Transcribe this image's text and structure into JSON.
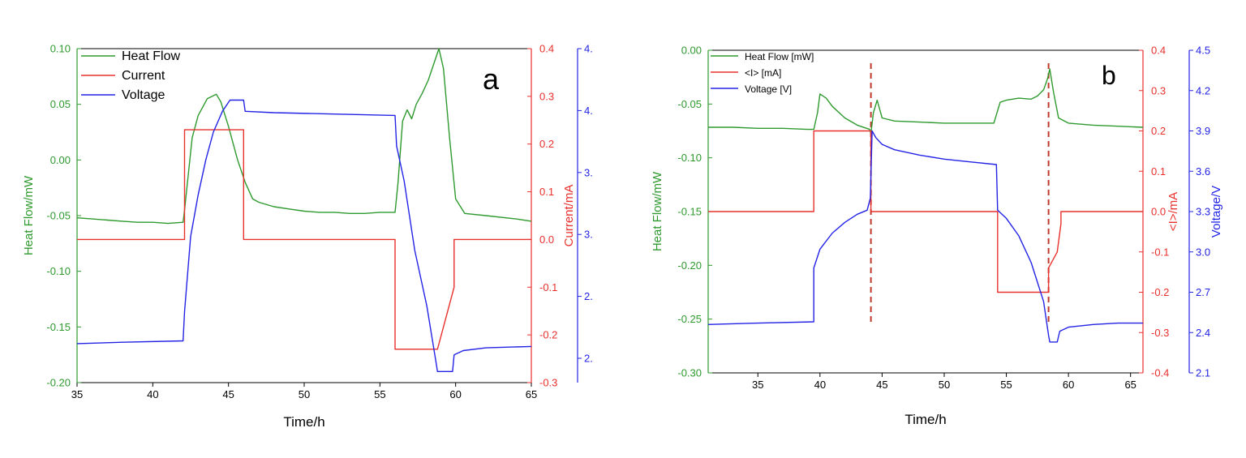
{
  "colors": {
    "heat": "#2e9a2e",
    "current": "#e8302c",
    "voltage": "#2323e6",
    "axis": "#000000",
    "marker": "#c0392b"
  },
  "chart_data": [
    {
      "panel_label": "a",
      "type": "line",
      "xlabel": "Time/h",
      "xlim": [
        35,
        65
      ],
      "xticks": [
        35,
        40,
        45,
        50,
        55,
        60,
        65
      ],
      "left_axis": {
        "label": "Heat Flow/mW",
        "lim": [
          -0.2,
          0.1
        ],
        "ticks": [
          "0.10",
          "0.05",
          "0.00",
          "-0.05",
          "-0.10",
          "-0.15",
          "-0.20"
        ]
      },
      "right_axis_1": {
        "label": "Current/mA",
        "lim": [
          -0.3,
          0.4
        ],
        "ticks": [
          "0.4",
          "0.3",
          "0.2",
          "0.1",
          "0.0",
          "-0.1",
          "-0.2",
          "-0.3"
        ]
      },
      "right_axis_2": {
        "label": "",
        "lim": [
          2.25,
          4.65
        ],
        "ticks": [
          "4.",
          "4.",
          "3.",
          "3.",
          "2.",
          "2."
        ]
      },
      "legend": {
        "placement": "top-left",
        "entries": [
          "Heat Flow",
          "Current",
          "Voltage"
        ]
      },
      "series": [
        {
          "name": "Heat Flow",
          "axis": "left",
          "x": [
            35,
            36,
            37,
            38,
            39,
            40,
            41,
            42,
            42.1,
            42.6,
            43,
            43.6,
            44.2,
            44.5,
            45,
            45.6,
            46.1,
            46.6,
            47,
            48,
            49,
            50,
            51,
            52,
            53,
            54,
            55,
            56,
            56.2,
            56.5,
            56.8,
            57.1,
            57.4,
            57.8,
            58.2,
            58.6,
            58.9,
            59.2,
            59.6,
            60,
            60.6,
            62,
            64,
            65
          ],
          "y": [
            -0.052,
            -0.053,
            -0.054,
            -0.055,
            -0.056,
            -0.056,
            -0.057,
            -0.056,
            -0.045,
            0.02,
            0.04,
            0.055,
            0.059,
            0.052,
            0.03,
            0.0,
            -0.02,
            -0.035,
            -0.038,
            -0.042,
            -0.044,
            -0.046,
            -0.047,
            -0.047,
            -0.048,
            -0.048,
            -0.047,
            -0.047,
            -0.02,
            0.035,
            0.045,
            0.037,
            0.05,
            0.06,
            0.072,
            0.088,
            0.1,
            0.082,
            0.02,
            -0.035,
            -0.048,
            -0.05,
            -0.053,
            -0.055
          ]
        },
        {
          "name": "Current",
          "axis": "right_1",
          "x": [
            35,
            42.1,
            42.1,
            46,
            46,
            56,
            56,
            58.8,
            59.9,
            59.9,
            65
          ],
          "y": [
            0,
            0,
            0.23,
            0.23,
            0,
            0,
            -0.23,
            -0.23,
            -0.1,
            0,
            0
          ]
        },
        {
          "name": "Voltage",
          "axis": "right_2",
          "x": [
            35,
            38,
            42,
            42.1,
            42.5,
            43,
            43.5,
            44,
            44.6,
            45.1,
            46,
            46.1,
            48,
            52,
            56,
            56.1,
            56.6,
            57.3,
            58.1,
            58.7,
            58.8,
            59.8,
            59.9,
            60.5,
            62,
            65
          ],
          "y": [
            2.53,
            2.54,
            2.55,
            2.76,
            3.3,
            3.6,
            3.85,
            4.05,
            4.2,
            4.28,
            4.28,
            4.2,
            4.19,
            4.18,
            4.17,
            3.95,
            3.7,
            3.2,
            2.8,
            2.4,
            2.33,
            2.33,
            2.45,
            2.48,
            2.5,
            2.51
          ]
        }
      ]
    },
    {
      "panel_label": "b",
      "type": "line",
      "xlabel": "Time/h",
      "xlim": [
        31,
        66
      ],
      "xticks": [
        35,
        40,
        45,
        50,
        55,
        60,
        65
      ],
      "left_axis": {
        "label": "Heat Flow/mW",
        "lim": [
          -0.3,
          0.01
        ],
        "ticks": [
          "0.00",
          "-0.05",
          "-0.10",
          "-0.15",
          "-0.20",
          "-0.25",
          "-0.30"
        ]
      },
      "right_axis_1": {
        "label": "<I>/mA",
        "lim": [
          -0.4,
          0.4
        ],
        "ticks": [
          "0.4",
          "0.3",
          "0.2",
          "0.1",
          "0.0",
          "-0.1",
          "-0.2",
          "-0.3",
          "-0.4"
        ]
      },
      "right_axis_2": {
        "label": "Voltage/V",
        "lim": [
          2.1,
          4.5
        ],
        "ticks": [
          "4.5",
          "4.2",
          "3.9",
          "3.6",
          "3.3",
          "3.0",
          "2.7",
          "2.4",
          "2.1"
        ]
      },
      "legend": {
        "placement": "top-left",
        "entries": [
          "Heat Flow [mW]",
          "<I> [mA]",
          "Voltage [V]"
        ]
      },
      "markers": [
        44.1,
        58.4
      ],
      "series": [
        {
          "name": "Heat Flow [mW]",
          "axis": "left",
          "x": [
            31,
            33,
            35,
            37,
            39,
            39.5,
            39.8,
            40,
            40.5,
            41,
            42,
            43,
            44,
            44.1,
            44.3,
            44.6,
            45,
            46,
            48,
            50,
            52,
            54,
            54.2,
            54.5,
            55,
            56,
            57,
            57.5,
            58,
            58.3,
            58.5,
            58.8,
            59.2,
            60,
            62,
            64,
            66
          ],
          "y": [
            -0.064,
            -0.064,
            -0.065,
            -0.065,
            -0.066,
            -0.066,
            -0.05,
            -0.032,
            -0.036,
            -0.044,
            -0.055,
            -0.062,
            -0.066,
            -0.07,
            -0.05,
            -0.038,
            -0.055,
            -0.058,
            -0.059,
            -0.06,
            -0.06,
            -0.06,
            -0.052,
            -0.04,
            -0.038,
            -0.036,
            -0.037,
            -0.034,
            -0.028,
            -0.018,
            -0.008,
            -0.03,
            -0.055,
            -0.06,
            -0.062,
            -0.063,
            -0.064
          ]
        },
        {
          "name": "<I> [mA]",
          "axis": "right_1",
          "x": [
            31,
            39.5,
            39.5,
            44.1,
            44.1,
            54.3,
            54.3,
            58.4,
            58.4,
            59.1,
            59.4,
            59.4,
            66
          ],
          "y": [
            0,
            0,
            0.2,
            0.2,
            0,
            0,
            -0.2,
            -0.2,
            -0.14,
            -0.1,
            -0.03,
            0,
            0
          ]
        },
        {
          "name": "Voltage [V]",
          "axis": "right_2",
          "x": [
            31,
            35,
            39.5,
            39.5,
            40,
            41,
            42,
            43,
            43.8,
            44.05,
            44.2,
            44.5,
            45,
            46,
            48,
            50,
            52,
            54.2,
            54.3,
            55,
            56,
            57,
            58,
            58.4,
            58.5,
            59.1,
            59.3,
            60,
            62,
            64,
            66
          ],
          "y": [
            2.46,
            2.47,
            2.48,
            2.88,
            3.02,
            3.14,
            3.22,
            3.28,
            3.31,
            3.4,
            3.9,
            3.85,
            3.8,
            3.76,
            3.72,
            3.69,
            3.67,
            3.65,
            3.31,
            3.25,
            3.12,
            2.92,
            2.63,
            2.38,
            2.33,
            2.33,
            2.41,
            2.44,
            2.46,
            2.47,
            2.47
          ]
        }
      ]
    }
  ]
}
